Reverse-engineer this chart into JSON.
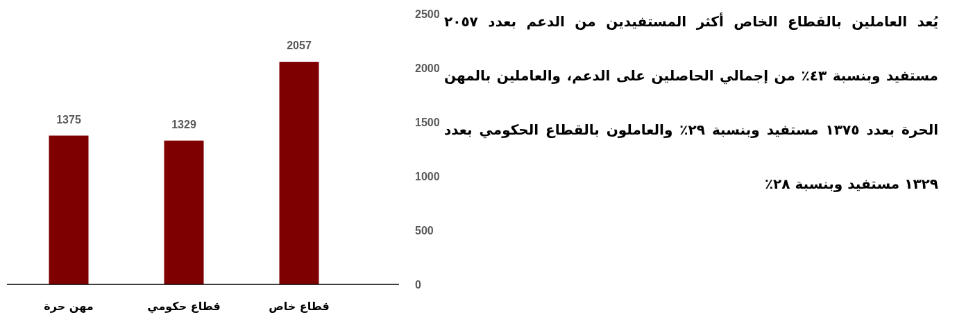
{
  "chart_data": {
    "type": "bar",
    "categories": [
      "مهن حرة",
      "قطاع حكومي",
      "قطاع خاص"
    ],
    "values": [
      1375,
      1329,
      2057
    ],
    "color": "#7f0000",
    "data_labels": true,
    "ylim": [
      0,
      2500
    ],
    "yticks": [
      0,
      500,
      1000,
      1500,
      2000,
      2500
    ],
    "annotations": [
      "يُعد العاملين بالقطاع الخاص أكثر المستفيدين من الدعم بعدد ٢٠٥٧ مستفيد وبنسبة ٤٣٪ من إجمالي الحاصلين على الدعم، والعاملين بالمهن الحرة بعدد ١٣٧٥ مستفيد وبنسبة ٢٩٪ والعاملون بالقطاع الحكومي بعدد ١٣٢٩ مستفيد وبنسبة ٢٨٪"
    ]
  }
}
